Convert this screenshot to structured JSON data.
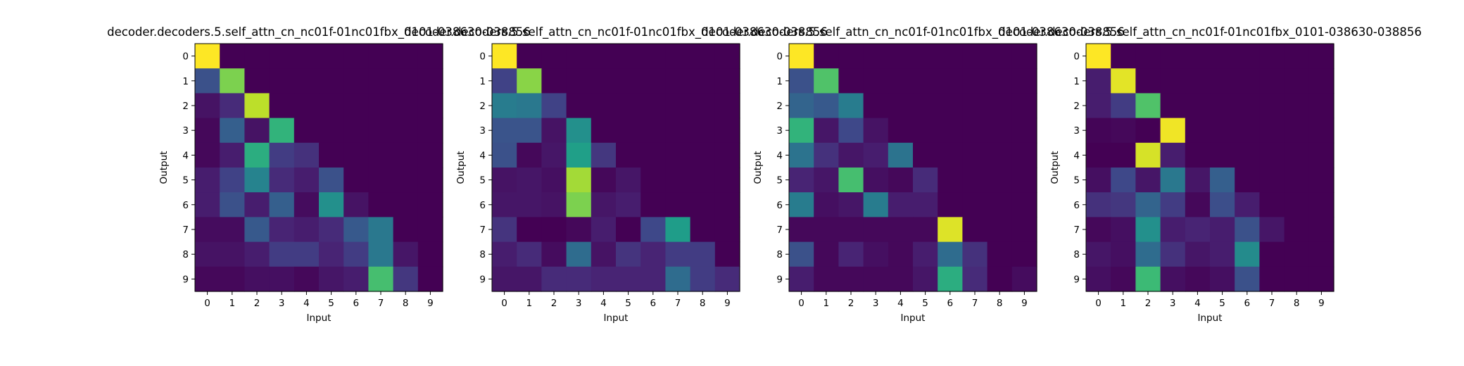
{
  "chart_data": [
    {
      "type": "heatmap",
      "title": "decoder.decoders.5.self_attn_cn_nc01f-01nc01fbx_0101-038630-038856",
      "xlabel": "Input",
      "ylabel": "Output",
      "x_ticks": [
        "0",
        "1",
        "2",
        "3",
        "4",
        "5",
        "6",
        "7",
        "8",
        "9"
      ],
      "y_ticks": [
        "0",
        "1",
        "2",
        "3",
        "4",
        "5",
        "6",
        "7",
        "8",
        "9"
      ],
      "colormap": "viridis",
      "vmin": 0,
      "vmax": 1,
      "values": [
        [
          1.0,
          0.0,
          0.0,
          0.0,
          0.0,
          0.0,
          0.0,
          0.0,
          0.0,
          0.0
        ],
        [
          0.25,
          0.8,
          0.0,
          0.0,
          0.0,
          0.0,
          0.0,
          0.0,
          0.0,
          0.0
        ],
        [
          0.05,
          0.12,
          0.9,
          0.0,
          0.0,
          0.0,
          0.0,
          0.0,
          0.0,
          0.0
        ],
        [
          0.02,
          0.3,
          0.05,
          0.65,
          0.0,
          0.0,
          0.0,
          0.0,
          0.0,
          0.0
        ],
        [
          0.02,
          0.08,
          0.62,
          0.18,
          0.14,
          0.0,
          0.0,
          0.0,
          0.0,
          0.0
        ],
        [
          0.08,
          0.2,
          0.45,
          0.12,
          0.08,
          0.25,
          0.0,
          0.0,
          0.0,
          0.0
        ],
        [
          0.08,
          0.25,
          0.08,
          0.3,
          0.03,
          0.5,
          0.05,
          0.0,
          0.0,
          0.0
        ],
        [
          0.03,
          0.03,
          0.28,
          0.1,
          0.08,
          0.12,
          0.28,
          0.4,
          0.0,
          0.0
        ],
        [
          0.05,
          0.05,
          0.08,
          0.18,
          0.18,
          0.1,
          0.18,
          0.4,
          0.06,
          0.0
        ],
        [
          0.02,
          0.02,
          0.04,
          0.04,
          0.02,
          0.06,
          0.08,
          0.7,
          0.16,
          0.0
        ]
      ]
    },
    {
      "type": "heatmap",
      "title": "decoder.decoders.5.self_attn_cn_nc01f-01nc01fbx_0101-038630-038856",
      "xlabel": "Input",
      "ylabel": "Output",
      "x_ticks": [
        "0",
        "1",
        "2",
        "3",
        "4",
        "5",
        "6",
        "7",
        "8",
        "9"
      ],
      "y_ticks": [
        "0",
        "1",
        "2",
        "3",
        "4",
        "5",
        "6",
        "7",
        "8",
        "9"
      ],
      "colormap": "viridis",
      "vmin": 0,
      "vmax": 1,
      "values": [
        [
          1.0,
          0.0,
          0.0,
          0.0,
          0.0,
          0.0,
          0.0,
          0.0,
          0.0,
          0.0
        ],
        [
          0.2,
          0.82,
          0.0,
          0.0,
          0.0,
          0.0,
          0.0,
          0.0,
          0.0,
          0.0
        ],
        [
          0.42,
          0.4,
          0.2,
          0.0,
          0.0,
          0.0,
          0.0,
          0.0,
          0.0,
          0.0
        ],
        [
          0.26,
          0.26,
          0.05,
          0.5,
          0.0,
          0.0,
          0.0,
          0.0,
          0.0,
          0.0
        ],
        [
          0.25,
          0.02,
          0.06,
          0.56,
          0.16,
          0.0,
          0.0,
          0.0,
          0.0,
          0.0
        ],
        [
          0.05,
          0.06,
          0.04,
          0.86,
          0.02,
          0.06,
          0.0,
          0.0,
          0.0,
          0.0
        ],
        [
          0.06,
          0.06,
          0.05,
          0.8,
          0.06,
          0.08,
          0.0,
          0.0,
          0.0,
          0.0
        ],
        [
          0.15,
          0.0,
          0.0,
          0.02,
          0.08,
          0.0,
          0.22,
          0.55,
          0.0,
          0.0
        ],
        [
          0.08,
          0.12,
          0.03,
          0.35,
          0.05,
          0.15,
          0.1,
          0.18,
          0.18,
          0.0
        ],
        [
          0.06,
          0.06,
          0.12,
          0.12,
          0.1,
          0.1,
          0.1,
          0.35,
          0.18,
          0.12
        ]
      ]
    },
    {
      "type": "heatmap",
      "title": "decoder.decoders.5.self_attn_cn_nc01f-01nc01fbx_0101-038630-038856",
      "xlabel": "Input",
      "ylabel": "Output",
      "x_ticks": [
        "0",
        "1",
        "2",
        "3",
        "4",
        "5",
        "6",
        "7",
        "8",
        "9"
      ],
      "y_ticks": [
        "0",
        "1",
        "2",
        "3",
        "4",
        "5",
        "6",
        "7",
        "8",
        "9"
      ],
      "colormap": "viridis",
      "vmin": 0,
      "vmax": 1,
      "values": [
        [
          1.0,
          0.0,
          0.0,
          0.0,
          0.0,
          0.0,
          0.0,
          0.0,
          0.0,
          0.0
        ],
        [
          0.25,
          0.72,
          0.0,
          0.0,
          0.0,
          0.0,
          0.0,
          0.0,
          0.0,
          0.0
        ],
        [
          0.32,
          0.28,
          0.42,
          0.0,
          0.0,
          0.0,
          0.0,
          0.0,
          0.0,
          0.0
        ],
        [
          0.65,
          0.06,
          0.22,
          0.05,
          0.0,
          0.0,
          0.0,
          0.0,
          0.0,
          0.0
        ],
        [
          0.38,
          0.14,
          0.06,
          0.08,
          0.38,
          0.0,
          0.0,
          0.0,
          0.0,
          0.0
        ],
        [
          0.1,
          0.06,
          0.7,
          0.04,
          0.02,
          0.12,
          0.0,
          0.0,
          0.0,
          0.0
        ],
        [
          0.42,
          0.04,
          0.06,
          0.42,
          0.08,
          0.08,
          0.0,
          0.0,
          0.0,
          0.0
        ],
        [
          0.02,
          0.02,
          0.02,
          0.02,
          0.02,
          0.02,
          0.95,
          0.0,
          0.0,
          0.0
        ],
        [
          0.25,
          0.02,
          0.1,
          0.04,
          0.02,
          0.08,
          0.35,
          0.14,
          0.0,
          0.0
        ],
        [
          0.08,
          0.02,
          0.02,
          0.02,
          0.02,
          0.06,
          0.62,
          0.12,
          0.0,
          0.03
        ]
      ]
    },
    {
      "type": "heatmap",
      "title": "decoder.decoders.5.self_attn_cn_nc01f-01nc01fbx_0101-038630-038856",
      "xlabel": "Input",
      "ylabel": "Output",
      "x_ticks": [
        "0",
        "1",
        "2",
        "3",
        "4",
        "5",
        "6",
        "7",
        "8",
        "9"
      ],
      "y_ticks": [
        "0",
        "1",
        "2",
        "3",
        "4",
        "5",
        "6",
        "7",
        "8",
        "9"
      ],
      "colormap": "viridis",
      "vmin": 0,
      "vmax": 1,
      "values": [
        [
          1.0,
          0.0,
          0.0,
          0.0,
          0.0,
          0.0,
          0.0,
          0.0,
          0.0,
          0.0
        ],
        [
          0.08,
          0.96,
          0.0,
          0.0,
          0.0,
          0.0,
          0.0,
          0.0,
          0.0,
          0.0
        ],
        [
          0.08,
          0.18,
          0.72,
          0.0,
          0.0,
          0.0,
          0.0,
          0.0,
          0.0,
          0.0
        ],
        [
          0.01,
          0.02,
          0.0,
          0.98,
          0.0,
          0.0,
          0.0,
          0.0,
          0.0,
          0.0
        ],
        [
          0.0,
          0.0,
          0.94,
          0.08,
          0.0,
          0.0,
          0.0,
          0.0,
          0.0,
          0.0
        ],
        [
          0.04,
          0.22,
          0.06,
          0.4,
          0.06,
          0.3,
          0.0,
          0.0,
          0.0,
          0.0
        ],
        [
          0.14,
          0.16,
          0.32,
          0.18,
          0.02,
          0.24,
          0.08,
          0.0,
          0.0,
          0.0
        ],
        [
          0.02,
          0.04,
          0.5,
          0.08,
          0.1,
          0.08,
          0.25,
          0.06,
          0.0,
          0.0
        ],
        [
          0.06,
          0.04,
          0.35,
          0.14,
          0.06,
          0.08,
          0.48,
          0.0,
          0.0,
          0.0
        ],
        [
          0.04,
          0.02,
          0.68,
          0.04,
          0.02,
          0.04,
          0.25,
          0.0,
          0.0,
          0.0
        ]
      ]
    }
  ]
}
